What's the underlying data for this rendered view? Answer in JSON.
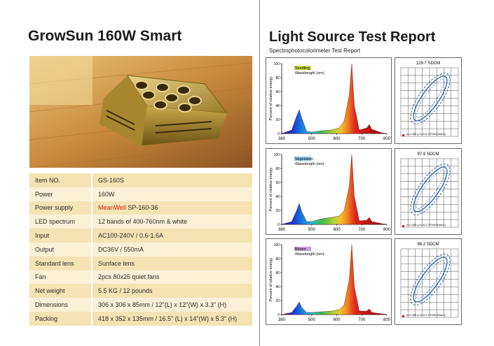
{
  "left": {
    "title": "GrowSun 160W Smart",
    "specs": [
      {
        "label": "Item NO.",
        "value": "GS-160S"
      },
      {
        "label": "Power",
        "value": "160W"
      },
      {
        "label": "Power supply",
        "value_brand": "MeanWell",
        "value": "SP-160-36"
      },
      {
        "label": "LED spectrum",
        "value": "12 bands of 400-760nm & white"
      },
      {
        "label": "Input",
        "value": "AC100-240V / 0.6-1.6A"
      },
      {
        "label": "Output",
        "value": "DC36V / 550mA"
      },
      {
        "label": "Standard lens",
        "value": "Sunface lens"
      },
      {
        "label": "Fan",
        "value": "2pcs 80x25 quiet fans"
      },
      {
        "label": "Net weight",
        "value": "5.5 KG / 12 pounds"
      },
      {
        "label": "Dimensions",
        "value": "306 x 306 x 85mm / 12\"(L) x 12\"(W) x 3.3\" (H)"
      },
      {
        "label": "Packing",
        "value": "418 x 352 x 135mm / 16.5\" (L) x 14\"(W) x 5.3\" (H)"
      }
    ],
    "colors": {
      "row_odd": "#f4e3b3",
      "row_even": "#fbf1d6",
      "brand_red": "#d6201b"
    }
  },
  "right": {
    "title": "Light Source Test Report",
    "subtitle": "Spectrophotocolorimeter Test Report",
    "ylabel": "Percent of relative energy",
    "xlabel": "Wavelength (nm)",
    "panels": [
      {
        "mode": "Seedling",
        "mode_color": "#c9dc3c",
        "sdcm": "129.7 SDCM",
        "coords": "x=0.459 y=0.412 2700K(Note1)"
      },
      {
        "mode": "Vegetation",
        "mode_color": "#8ec6e8",
        "sdcm": "97.9 SDCM",
        "coords": "x=0.459 y=0.412 2700K(Note1)"
      },
      {
        "mode": "Bloom",
        "mode_color": "#c79fd6",
        "sdcm": "96.2 SDCM",
        "coords": "x=0.459 y=0.412 2700K(Note1)"
      }
    ]
  },
  "chart_data": [
    {
      "type": "line",
      "title": "Seedling",
      "xlabel": "Wavelength (nm)",
      "ylabel": "Percent of relative energy",
      "xlim": [
        380,
        800
      ],
      "ylim": [
        0,
        100
      ],
      "xticks": [
        380,
        500,
        600,
        700,
        800
      ],
      "yticks": [
        0,
        20,
        40,
        60,
        80,
        100
      ],
      "series": [
        {
          "x": [
            380,
            420,
            440,
            450,
            460,
            480,
            500,
            540,
            580,
            610,
            630,
            650,
            660,
            670,
            690,
            720,
            730,
            740,
            780,
            800
          ],
          "y": [
            0,
            5,
            25,
            34,
            22,
            3,
            2,
            4,
            5,
            8,
            18,
            55,
            100,
            40,
            5,
            8,
            13,
            6,
            1,
            0
          ]
        }
      ]
    },
    {
      "type": "line",
      "title": "Vegetation",
      "xlabel": "Wavelength (nm)",
      "ylabel": "Percent of relative energy",
      "xlim": [
        380,
        800
      ],
      "ylim": [
        0,
        100
      ],
      "xticks": [
        380,
        500,
        600,
        700,
        800
      ],
      "yticks": [
        0,
        20,
        40,
        60,
        80,
        100
      ],
      "series": [
        {
          "x": [
            380,
            420,
            440,
            450,
            460,
            480,
            500,
            540,
            580,
            610,
            630,
            650,
            660,
            670,
            690,
            720,
            730,
            740,
            780,
            800
          ],
          "y": [
            0,
            4,
            20,
            30,
            18,
            4,
            4,
            8,
            10,
            12,
            20,
            55,
            100,
            40,
            5,
            6,
            10,
            4,
            1,
            0
          ]
        }
      ]
    },
    {
      "type": "line",
      "title": "Bloom",
      "xlabel": "Wavelength (nm)",
      "ylabel": "Percent of relative energy",
      "xlim": [
        380,
        800
      ],
      "ylim": [
        0,
        100
      ],
      "xticks": [
        380,
        500,
        600,
        700,
        800
      ],
      "yticks": [
        0,
        20,
        40,
        60,
        80,
        100
      ],
      "series": [
        {
          "x": [
            380,
            420,
            440,
            450,
            460,
            480,
            500,
            540,
            580,
            610,
            630,
            650,
            660,
            670,
            690,
            720,
            730,
            740,
            780,
            800
          ],
          "y": [
            0,
            3,
            12,
            18,
            10,
            3,
            3,
            4,
            5,
            7,
            14,
            50,
            100,
            40,
            5,
            5,
            8,
            3,
            1,
            0
          ]
        }
      ]
    }
  ]
}
